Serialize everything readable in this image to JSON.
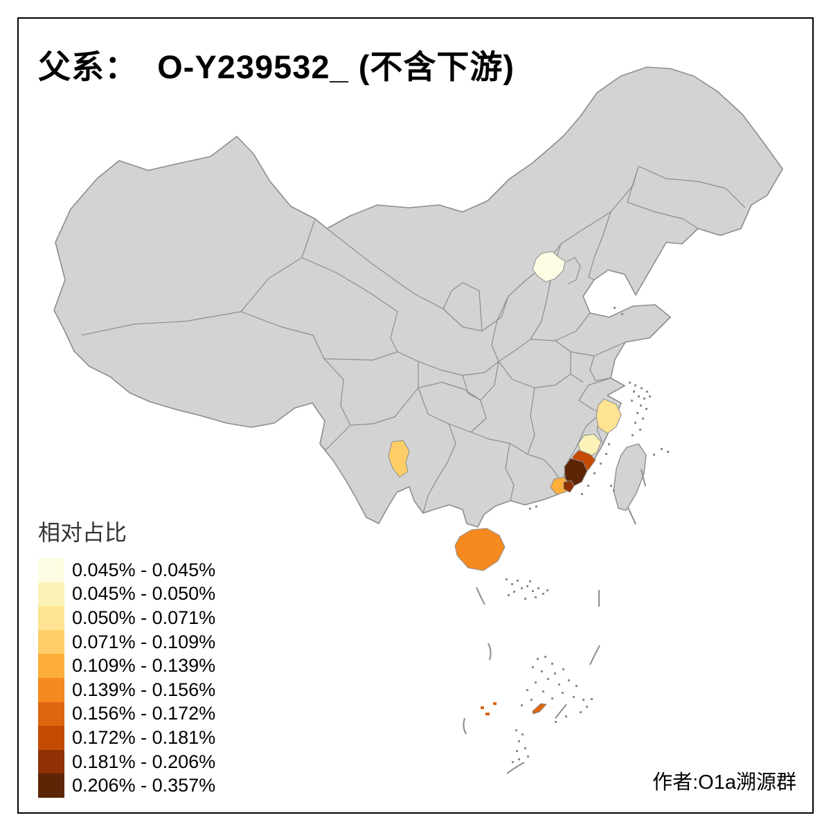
{
  "title": "父系：  O-Y239532_ (不含下游)",
  "attribution": "作者:O1a溯源群",
  "legend": {
    "title": "相对占比",
    "classes": [
      {
        "label": "0.045% - 0.045%",
        "color": "#FEFDE3"
      },
      {
        "label": "0.045% - 0.050%",
        "color": "#FBF2B8"
      },
      {
        "label": "0.050% - 0.071%",
        "color": "#FDE392"
      },
      {
        "label": "0.071% - 0.109%",
        "color": "#FDCE67"
      },
      {
        "label": "0.109% - 0.139%",
        "color": "#FDAE3B"
      },
      {
        "label": "0.139% - 0.156%",
        "color": "#F58A20"
      },
      {
        "label": "0.156% - 0.172%",
        "color": "#DD660F"
      },
      {
        "label": "0.172% - 0.181%",
        "color": "#C44B04"
      },
      {
        "label": "0.181% - 0.206%",
        "color": "#8F3104"
      },
      {
        "label": "0.206% - 0.357%",
        "color": "#5D2506"
      }
    ]
  },
  "map": {
    "land_fill": "#D3D3D3",
    "border_color": "#8C8C8C",
    "sea_color": "#FFFFFF",
    "frame_color": "#000000"
  },
  "chart_data": {
    "type": "choropleth",
    "title": "父系： O-Y239532_ (不含下游)",
    "legend_title": "相对占比",
    "unit": "%",
    "classes": [
      "0.045% - 0.045%",
      "0.045% - 0.050%",
      "0.050% - 0.071%",
      "0.071% - 0.109%",
      "0.109% - 0.139%",
      "0.139% - 0.156%",
      "0.156% - 0.172%",
      "0.172% - 0.181%",
      "0.181% - 0.206%",
      "0.206% - 0.357%"
    ],
    "regions": [
      {
        "name": "beijing",
        "class_index": 0,
        "range": "0.045% - 0.045%"
      },
      {
        "name": "fuzhou",
        "class_index": 1,
        "range": "0.045% - 0.050%"
      },
      {
        "name": "wenzhou",
        "class_index": 2,
        "range": "0.050% - 0.071%"
      },
      {
        "name": "kunming",
        "class_index": 3,
        "range": "0.071% - 0.109%"
      },
      {
        "name": "chaozhou-jieyang",
        "class_index": 4,
        "range": "0.109% - 0.139%"
      },
      {
        "name": "hainan",
        "class_index": 5,
        "range": "0.139% - 0.156%"
      },
      {
        "name": "sansha-islands",
        "class_index": 6,
        "range": "0.156% - 0.172%"
      },
      {
        "name": "quanzhou",
        "class_index": 7,
        "range": "0.172% - 0.181%"
      },
      {
        "name": "shantou",
        "class_index": 8,
        "range": "0.181% - 0.206%"
      },
      {
        "name": "zhangzhou-xiamen",
        "class_index": 9,
        "range": "0.206% - 0.357%"
      }
    ]
  }
}
